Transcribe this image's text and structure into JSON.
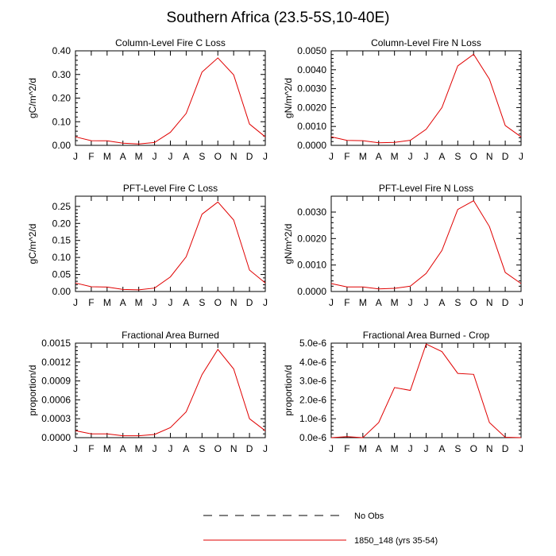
{
  "page": {
    "title": "Southern Africa (23.5-5S,10-40E)"
  },
  "legend": {
    "items": [
      {
        "label": "No Obs",
        "style": "dashed",
        "color": "#000000"
      },
      {
        "label": "1850_148 (yrs 35-54)",
        "style": "solid",
        "color": "#e00000"
      }
    ]
  },
  "chart_data": [
    {
      "type": "line",
      "title": "Column-Level Fire C Loss",
      "ylabel": "gC/m^2/d",
      "categories": [
        "J",
        "F",
        "M",
        "A",
        "M",
        "J",
        "J",
        "A",
        "S",
        "O",
        "N",
        "D",
        "J"
      ],
      "ylim": [
        0,
        0.4
      ],
      "yticks": [
        0,
        0.1,
        0.2,
        0.3,
        0.4
      ],
      "yticklabels": [
        "0.00",
        "0.10",
        "0.20",
        "0.30",
        "0.40"
      ],
      "series": [
        {
          "color": "#e00000",
          "values": [
            0.036,
            0.02,
            0.019,
            0.009,
            0.006,
            0.012,
            0.055,
            0.135,
            0.31,
            0.37,
            0.298,
            0.09,
            0.036
          ]
        }
      ]
    },
    {
      "type": "line",
      "title": "Column-Level Fire N Loss",
      "ylabel": "gN/m^2/d",
      "categories": [
        "J",
        "F",
        "M",
        "A",
        "M",
        "J",
        "J",
        "A",
        "S",
        "O",
        "N",
        "D",
        "J"
      ],
      "ylim": [
        0,
        0.005
      ],
      "yticks": [
        0,
        0.001,
        0.002,
        0.003,
        0.004,
        0.005
      ],
      "yticklabels": [
        "0.0000",
        "0.0010",
        "0.0020",
        "0.0030",
        "0.0040",
        "0.0050"
      ],
      "series": [
        {
          "color": "#e00000",
          "values": [
            0.00045,
            0.00026,
            0.00025,
            0.00014,
            0.00016,
            0.00027,
            0.00085,
            0.002,
            0.0042,
            0.00482,
            0.0035,
            0.00105,
            0.00045
          ]
        }
      ]
    },
    {
      "type": "line",
      "title": "PFT-Level Fire C Loss",
      "ylabel": "gC/m^2/d",
      "categories": [
        "J",
        "F",
        "M",
        "A",
        "M",
        "J",
        "J",
        "A",
        "S",
        "O",
        "N",
        "D",
        "J"
      ],
      "ylim": [
        0,
        0.28
      ],
      "yticks": [
        0,
        0.05,
        0.1,
        0.15,
        0.2,
        0.25
      ],
      "yticklabels": [
        "0.00",
        "0.05",
        "0.10",
        "0.15",
        "0.20",
        "0.25"
      ],
      "series": [
        {
          "color": "#e00000",
          "values": [
            0.025,
            0.014,
            0.013,
            0.006,
            0.005,
            0.01,
            0.043,
            0.102,
            0.227,
            0.263,
            0.21,
            0.063,
            0.025
          ]
        }
      ]
    },
    {
      "type": "line",
      "title": "PFT-Level Fire N Loss",
      "ylabel": "gN/m^2/d",
      "categories": [
        "J",
        "F",
        "M",
        "A",
        "M",
        "J",
        "J",
        "A",
        "S",
        "O",
        "N",
        "D",
        "J"
      ],
      "ylim": [
        0,
        0.0036
      ],
      "yticks": [
        0,
        0.001,
        0.002,
        0.003
      ],
      "yticklabels": [
        "0.0000",
        "0.0010",
        "0.0020",
        "0.0030"
      ],
      "series": [
        {
          "color": "#e00000",
          "values": [
            0.0003,
            0.00017,
            0.00017,
            0.0001,
            0.00012,
            0.0002,
            0.00068,
            0.00155,
            0.0031,
            0.00343,
            0.00245,
            0.00072,
            0.0003
          ]
        }
      ]
    },
    {
      "type": "line",
      "title": "Fractional Area Burned",
      "ylabel": "proportion/d",
      "categories": [
        "J",
        "F",
        "M",
        "A",
        "M",
        "J",
        "J",
        "A",
        "S",
        "O",
        "N",
        "D",
        "J"
      ],
      "ylim": [
        0,
        0.0015
      ],
      "yticks": [
        0,
        0.0003,
        0.0006,
        0.0009,
        0.0012,
        0.0015
      ],
      "yticklabels": [
        "0.0000",
        "0.0003",
        "0.0006",
        "0.0009",
        "0.0012",
        "0.0015"
      ],
      "series": [
        {
          "color": "#e00000",
          "values": [
            0.00011,
            6e-05,
            6e-05,
            3e-05,
            3e-05,
            5e-05,
            0.00016,
            0.00041,
            0.001,
            0.0014,
            0.00109,
            0.0003,
            0.00011
          ]
        }
      ]
    },
    {
      "type": "line",
      "title": "Fractional Area Burned - Crop",
      "ylabel": "proportion/d",
      "categories": [
        "J",
        "F",
        "M",
        "A",
        "M",
        "J",
        "J",
        "A",
        "S",
        "O",
        "N",
        "D",
        "J"
      ],
      "ylim": [
        0,
        5e-06
      ],
      "yticks": [
        0,
        1e-06,
        2e-06,
        3e-06,
        4e-06,
        5e-06
      ],
      "yticklabels": [
        "0.0e-6",
        "1.0e-6",
        "2.0e-6",
        "3.0e-6",
        "4.0e-6",
        "5.0e-6"
      ],
      "series": [
        {
          "color": "#e00000",
          "values": [
            0.0,
            5e-08,
            0.0,
            8e-07,
            2.65e-06,
            2.5e-06,
            4.95e-06,
            4.55e-06,
            3.4e-06,
            3.35e-06,
            8e-07,
            2e-08,
            0.0
          ]
        }
      ]
    }
  ]
}
